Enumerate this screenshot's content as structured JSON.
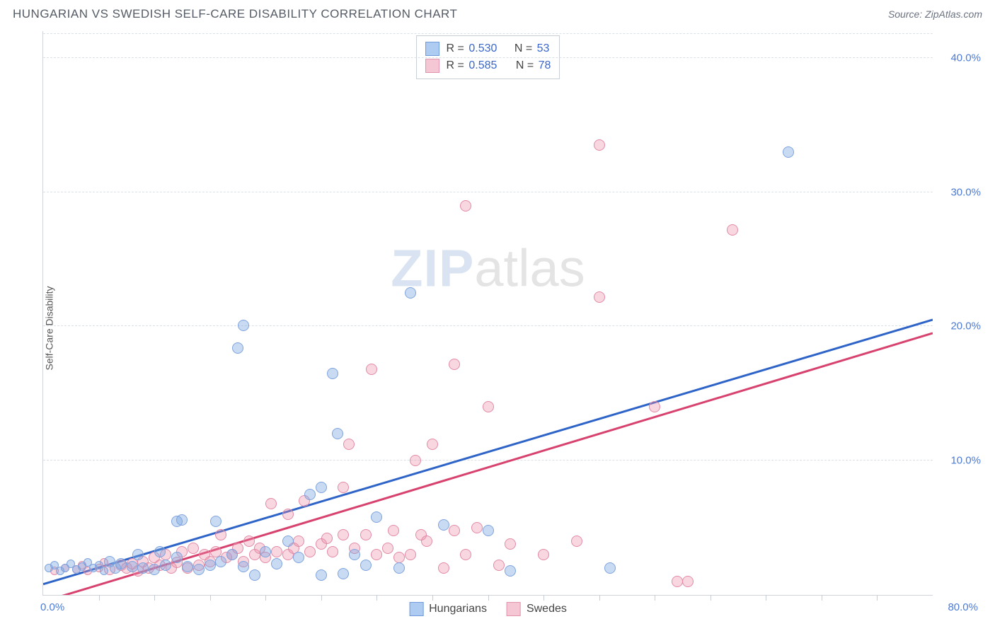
{
  "title": "HUNGARIAN VS SWEDISH SELF-CARE DISABILITY CORRELATION CHART",
  "source_label": "Source:",
  "source_name": "ZipAtlas.com",
  "y_axis_label": "Self-Care Disability",
  "watermark_left": "ZIP",
  "watermark_right": "atlas",
  "chart": {
    "type": "scatter",
    "xlim": [
      0,
      80
    ],
    "ylim": [
      0,
      42
    ],
    "y_grid": [
      10,
      20,
      30,
      40
    ],
    "y_ticks": [
      {
        "v": 10,
        "label": "10.0%"
      },
      {
        "v": 20,
        "label": "20.0%"
      },
      {
        "v": 30,
        "label": "30.0%"
      },
      {
        "v": 40,
        "label": "40.0%"
      }
    ],
    "x_ticks_minor": [
      5,
      10,
      15,
      20,
      25,
      30,
      35,
      40,
      45,
      50,
      55,
      60,
      65,
      70,
      75
    ],
    "x_labels": [
      {
        "v": 0,
        "label": "0.0%"
      },
      {
        "v": 80,
        "label": "80.0%"
      }
    ],
    "background_color": "#ffffff",
    "grid_color": "#dbe0e6",
    "marker_size": 16,
    "marker_size_small": 12,
    "series": [
      {
        "name": "Hungarians",
        "fill": "rgba(120,164,226,0.40)",
        "stroke": "#7fa3dd",
        "trend_color": "#2e64c7",
        "r_value": "0.530",
        "n_value": "53",
        "trend": {
          "x0": 0,
          "y0": 0.8,
          "x1": 80,
          "y1": 20.5
        },
        "points": [
          [
            0.5,
            2.0
          ],
          [
            1,
            2.2
          ],
          [
            1.5,
            1.8
          ],
          [
            2,
            2.0
          ],
          [
            2.5,
            2.3
          ],
          [
            3,
            1.9
          ],
          [
            3.5,
            2.1
          ],
          [
            4,
            2.4
          ],
          [
            4.5,
            2.0
          ],
          [
            5,
            2.2
          ],
          [
            5.5,
            1.8
          ],
          [
            6,
            2.5
          ],
          [
            6.5,
            2.0
          ],
          [
            7,
            2.3
          ],
          [
            8,
            2.1
          ],
          [
            8.5,
            3.0
          ],
          [
            9,
            2.0
          ],
          [
            10,
            1.9
          ],
          [
            10.5,
            3.2
          ],
          [
            11,
            2.2
          ],
          [
            12,
            2.8
          ],
          [
            12,
            5.5
          ],
          [
            12.5,
            5.6
          ],
          [
            13,
            2.1
          ],
          [
            14,
            1.9
          ],
          [
            15,
            2.2
          ],
          [
            15.5,
            5.5
          ],
          [
            16,
            2.5
          ],
          [
            17,
            3.0
          ],
          [
            17.5,
            18.4
          ],
          [
            18,
            2.1
          ],
          [
            18,
            20.1
          ],
          [
            19,
            1.5
          ],
          [
            20,
            3.2
          ],
          [
            21,
            2.3
          ],
          [
            22,
            4.0
          ],
          [
            23,
            2.8
          ],
          [
            24,
            7.5
          ],
          [
            25,
            1.5
          ],
          [
            25,
            8.0
          ],
          [
            26,
            16.5
          ],
          [
            26.5,
            12.0
          ],
          [
            27,
            1.6
          ],
          [
            28,
            3.0
          ],
          [
            29,
            2.2
          ],
          [
            30,
            5.8
          ],
          [
            32,
            2.0
          ],
          [
            33,
            22.5
          ],
          [
            36,
            5.2
          ],
          [
            40,
            4.8
          ],
          [
            42,
            1.8
          ],
          [
            51,
            2.0
          ],
          [
            67,
            33.0
          ]
        ]
      },
      {
        "name": "Swedes",
        "fill": "rgba(236,140,168,0.35)",
        "stroke": "#e28aa5",
        "trend_color": "#d7426f",
        "r_value": "0.585",
        "n_value": "78",
        "trend": {
          "x0": 0,
          "y0": -0.5,
          "x1": 80,
          "y1": 19.5
        },
        "points": [
          [
            1,
            1.8
          ],
          [
            2,
            2.0
          ],
          [
            3,
            1.9
          ],
          [
            3.5,
            2.2
          ],
          [
            4,
            1.8
          ],
          [
            5,
            2.0
          ],
          [
            5.5,
            2.4
          ],
          [
            6,
            1.9
          ],
          [
            7,
            2.2
          ],
          [
            7.5,
            2.0
          ],
          [
            8,
            2.3
          ],
          [
            8.5,
            1.8
          ],
          [
            9,
            2.5
          ],
          [
            9.5,
            2.0
          ],
          [
            10,
            2.8
          ],
          [
            10.5,
            2.2
          ],
          [
            11,
            3.0
          ],
          [
            11.5,
            2.0
          ],
          [
            12,
            2.4
          ],
          [
            12.5,
            3.2
          ],
          [
            13,
            2.0
          ],
          [
            13.5,
            3.5
          ],
          [
            14,
            2.2
          ],
          [
            14.5,
            3.0
          ],
          [
            15,
            2.5
          ],
          [
            15.5,
            3.2
          ],
          [
            16,
            4.5
          ],
          [
            16.5,
            2.8
          ],
          [
            17,
            3.0
          ],
          [
            17.5,
            3.5
          ],
          [
            18,
            2.5
          ],
          [
            18.5,
            4.0
          ],
          [
            19,
            3.0
          ],
          [
            19.5,
            3.5
          ],
          [
            20,
            2.8
          ],
          [
            20.5,
            6.8
          ],
          [
            21,
            3.2
          ],
          [
            22,
            3.0
          ],
          [
            22,
            6.0
          ],
          [
            22.5,
            3.5
          ],
          [
            23,
            4.0
          ],
          [
            23.5,
            7.0
          ],
          [
            24,
            3.2
          ],
          [
            25,
            3.8
          ],
          [
            25.5,
            4.2
          ],
          [
            26,
            3.2
          ],
          [
            27,
            4.5
          ],
          [
            27,
            8.0
          ],
          [
            27.5,
            11.2
          ],
          [
            28,
            3.5
          ],
          [
            29,
            4.5
          ],
          [
            29.5,
            16.8
          ],
          [
            30,
            3.0
          ],
          [
            31,
            3.5
          ],
          [
            31.5,
            4.8
          ],
          [
            32,
            2.8
          ],
          [
            33,
            3.0
          ],
          [
            33.5,
            10.0
          ],
          [
            34,
            4.5
          ],
          [
            34.5,
            4.0
          ],
          [
            35,
            11.2
          ],
          [
            36,
            2.0
          ],
          [
            37,
            4.8
          ],
          [
            37,
            17.2
          ],
          [
            38,
            3.0
          ],
          [
            38,
            29.0
          ],
          [
            39,
            5.0
          ],
          [
            40,
            14.0
          ],
          [
            41,
            2.2
          ],
          [
            42,
            3.8
          ],
          [
            45,
            3.0
          ],
          [
            48,
            4.0
          ],
          [
            50,
            22.2
          ],
          [
            50,
            33.5
          ],
          [
            55,
            14.0
          ],
          [
            57,
            1.0
          ],
          [
            58,
            1.0
          ],
          [
            62,
            27.2
          ]
        ]
      }
    ]
  },
  "colors": {
    "title_text": "#555c66",
    "axis_text": "#4a7bd8",
    "hungarian_swatch_fill": "#aecbf1",
    "hungarian_swatch_border": "#6f9bdc",
    "swedish_swatch_fill": "#f5c6d4",
    "swedish_swatch_border": "#e493ad"
  }
}
